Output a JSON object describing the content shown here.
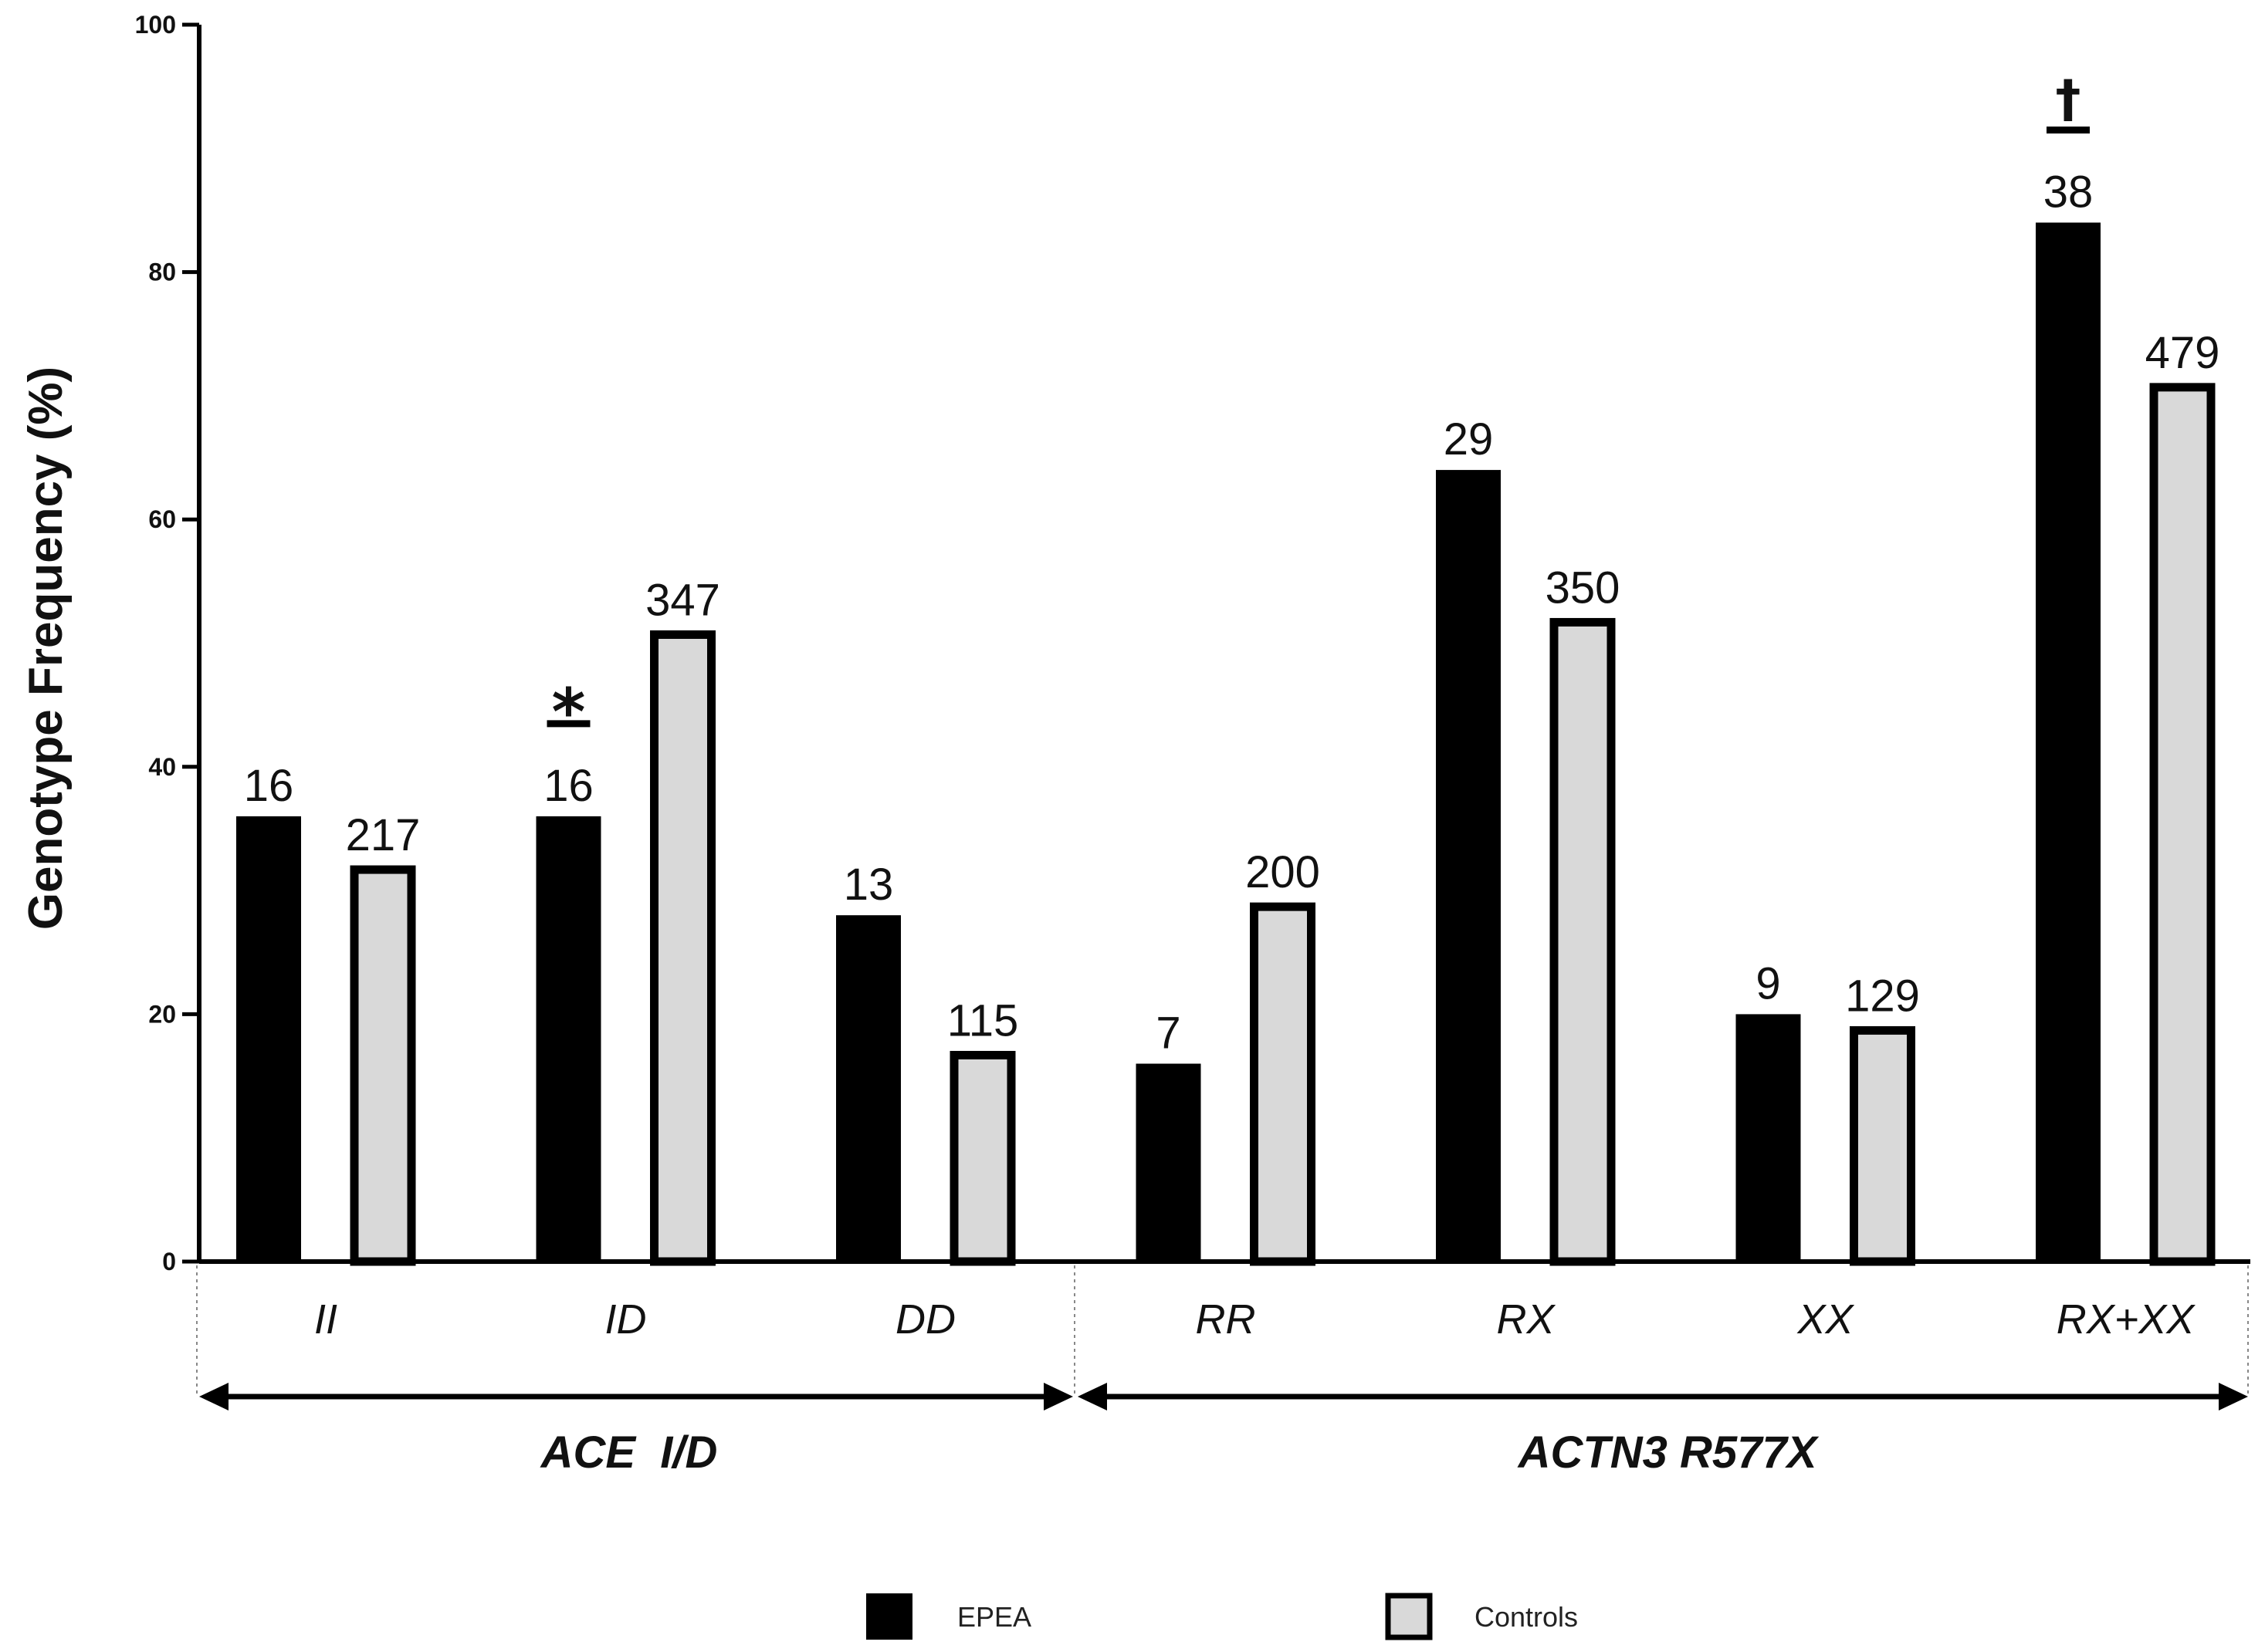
{
  "chart_data": {
    "type": "bar",
    "ylabel": "Genotype Frequency (%)",
    "ylim": [
      0,
      100
    ],
    "yticks": [
      0,
      20,
      40,
      60,
      80,
      100
    ],
    "categories": [
      "II",
      "ID",
      "DD",
      "RR",
      "RX",
      "XX",
      "RX+XX"
    ],
    "series": [
      {
        "name": "EPEA",
        "color": "#000000",
        "values": [
          36,
          36,
          28,
          16,
          64,
          20,
          84
        ],
        "counts": [
          "16",
          "16",
          "13",
          "7",
          "29",
          "9",
          "38"
        ]
      },
      {
        "name": "Controls",
        "color": "#d9d9d9",
        "values": [
          32,
          51,
          17,
          29,
          52,
          19,
          71
        ],
        "counts": [
          "217",
          "347",
          "115",
          "200",
          "350",
          "129",
          "479"
        ]
      }
    ],
    "groups": [
      {
        "label": "ACE  I/D",
        "categories": [
          "II",
          "ID",
          "DD"
        ]
      },
      {
        "label": "ACTN3 R577X",
        "categories": [
          "RR",
          "RX",
          "XX",
          "RX+XX"
        ]
      }
    ],
    "annotations": [
      {
        "category": "ID",
        "series": "EPEA",
        "symbol": "*"
      },
      {
        "category": "RX+XX",
        "series": "EPEA",
        "symbol": "†"
      }
    ],
    "legend": {
      "position": "bottom",
      "entries": [
        "EPEA",
        "Controls"
      ]
    }
  }
}
